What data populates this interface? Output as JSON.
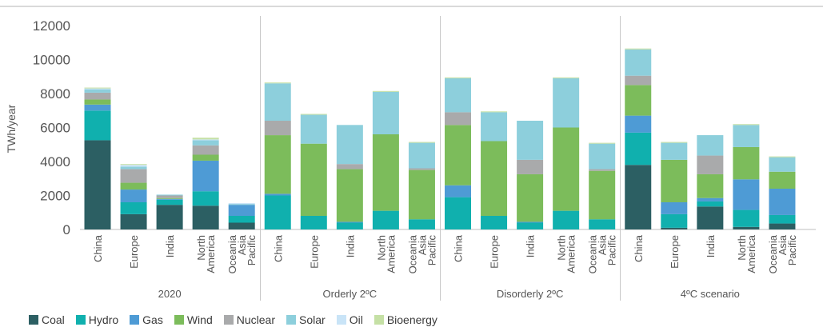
{
  "chart_data": {
    "type": "bar",
    "stacked": true,
    "title": "",
    "xlabel": "",
    "ylabel": "TWh/year",
    "ylim": [
      0,
      12000
    ],
    "yticks": [
      0,
      2000,
      4000,
      6000,
      8000,
      10000,
      12000
    ],
    "grid": false,
    "legend_position": "bottom-left",
    "regions": [
      "China",
      "Europe",
      "India",
      "North America",
      "Oceania Asia Pacific"
    ],
    "groups": [
      "2020",
      "Orderly 2ºC",
      "Disorderly 2ºC",
      "4ºC scenario"
    ],
    "series": [
      {
        "name": "Coal",
        "color": "#2c5f63",
        "values": [
          [
            5250,
            900,
            1450,
            1400,
            400
          ],
          [
            0,
            0,
            0,
            0,
            0
          ],
          [
            0,
            0,
            0,
            0,
            0
          ],
          [
            3800,
            100,
            1350,
            150,
            350
          ]
        ]
      },
      {
        "name": "Hydro",
        "color": "#10b0ae",
        "values": [
          [
            1750,
            700,
            300,
            850,
            400
          ],
          [
            2000,
            800,
            400,
            1100,
            600
          ],
          [
            1900,
            800,
            400,
            1100,
            600
          ],
          [
            1900,
            800,
            300,
            1000,
            500
          ]
        ]
      },
      {
        "name": "Gas",
        "color": "#4e9bd5",
        "values": [
          [
            350,
            750,
            50,
            1800,
            650
          ],
          [
            100,
            0,
            50,
            0,
            0
          ],
          [
            700,
            0,
            50,
            0,
            0
          ],
          [
            1000,
            700,
            200,
            1800,
            1550
          ]
        ]
      },
      {
        "name": "Wind",
        "color": "#7cbc5b",
        "values": [
          [
            300,
            400,
            50,
            350,
            0
          ],
          [
            3450,
            4250,
            3100,
            4500,
            2900
          ],
          [
            3550,
            4400,
            2800,
            4900,
            2850
          ],
          [
            1800,
            2500,
            1400,
            1900,
            1000
          ]
        ]
      },
      {
        "name": "Nuclear",
        "color": "#a9aaab",
        "values": [
          [
            400,
            800,
            150,
            550,
            0
          ],
          [
            850,
            0,
            300,
            0,
            100
          ],
          [
            750,
            0,
            850,
            0,
            100
          ],
          [
            550,
            0,
            1100,
            0,
            0
          ]
        ]
      },
      {
        "name": "Solar",
        "color": "#8dcfdc",
        "values": [
          [
            200,
            150,
            50,
            300,
            50
          ],
          [
            2200,
            1700,
            2300,
            2500,
            1500
          ],
          [
            2000,
            1700,
            2300,
            2900,
            1500
          ],
          [
            1550,
            1000,
            1200,
            1300,
            850
          ]
        ]
      },
      {
        "name": "Oil",
        "color": "#c9e4f7",
        "values": [
          [
            50,
            100,
            0,
            50,
            50
          ],
          [
            0,
            0,
            0,
            0,
            0
          ],
          [
            0,
            0,
            0,
            0,
            0
          ],
          [
            0,
            0,
            0,
            0,
            0
          ]
        ]
      },
      {
        "name": "Bioenergy",
        "color": "#c5e0a5",
        "values": [
          [
            50,
            50,
            0,
            100,
            0
          ],
          [
            50,
            50,
            0,
            50,
            50
          ],
          [
            50,
            50,
            0,
            50,
            50
          ],
          [
            50,
            50,
            0,
            50,
            50
          ]
        ]
      }
    ]
  }
}
